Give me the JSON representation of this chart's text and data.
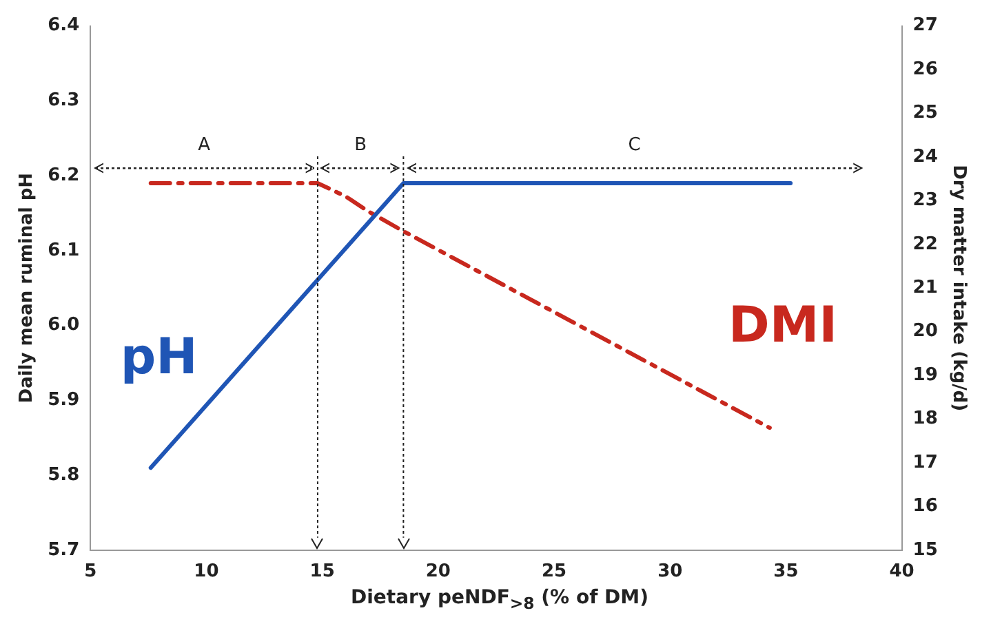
{
  "chart_data": {
    "type": "line",
    "xlabel": "Dietary peNDF$_{>8}$ (% of DM)",
    "ylabel": "Daily mean ruminal pH",
    "y2label": "Dry matter intake (kg/d)",
    "series": [
      {
        "name": "pH",
        "color": "#1f55b5",
        "line_style": "solid",
        "x": [
          7.6,
          18.5,
          35.2
        ],
        "values": [
          5.81,
          6.19,
          6.19
        ]
      },
      {
        "name": "DMI",
        "color": "#c8281e",
        "line_style": "dashed",
        "axis": "y2",
        "x": [
          7.6,
          14.8,
          16,
          17,
          18.5,
          34.3
        ],
        "values": [
          23.4,
          23.4,
          23.1,
          22.75,
          22.3,
          17.8
        ]
      }
    ],
    "xlim": [
      5,
      40
    ],
    "xticks": [
      5,
      10,
      15,
      20,
      25,
      30,
      35,
      40
    ],
    "ylim": [
      5.7,
      6.4
    ],
    "yticks": [
      5.7,
      5.8,
      5.9,
      {
        "value": 6,
        "label": "6.0"
      },
      6.1,
      6.2,
      6.3,
      6.4
    ],
    "y2lim": [
      15,
      27
    ],
    "y2ticks": [
      15,
      16,
      17,
      18,
      19,
      20,
      21,
      22,
      23,
      24,
      25,
      26,
      27
    ],
    "ref_lines": [
      {
        "axis": "x",
        "value": 14.8,
        "line_style": "dotted"
      },
      {
        "axis": "x",
        "value": 18.5,
        "line_style": "dotted"
      }
    ],
    "annotations": [
      "A",
      "B",
      "C"
    ],
    "grid": false,
    "legend": false,
    "marker": "none"
  }
}
